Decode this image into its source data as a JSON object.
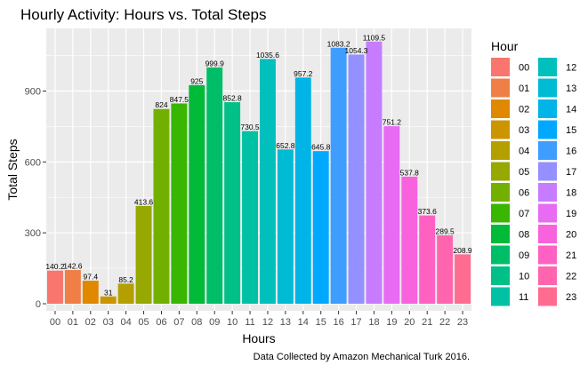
{
  "chart_data": {
    "type": "bar",
    "title": "Hourly Activity: Hours vs. Total Steps",
    "xlabel": "Hours",
    "ylabel": "Total Steps",
    "caption": "Data Collected by Amazon Mechanical Turk 2016.",
    "legend_title": "Hour",
    "legend_position": "right",
    "grid": true,
    "ylim": [
      0,
      1150
    ],
    "yticks": [
      0,
      300,
      600,
      900
    ],
    "categories": [
      "00",
      "01",
      "02",
      "03",
      "04",
      "05",
      "06",
      "07",
      "08",
      "09",
      "10",
      "11",
      "12",
      "13",
      "14",
      "15",
      "16",
      "17",
      "18",
      "19",
      "20",
      "21",
      "22",
      "23"
    ],
    "values": [
      140.2,
      142.6,
      97.4,
      31,
      85.2,
      413.6,
      824,
      847.5,
      925,
      999.9,
      852.8,
      730.5,
      1035.6,
      652.8,
      957.2,
      645.8,
      1083.2,
      1054.3,
      1109.5,
      751.2,
      537.8,
      373.6,
      289.5,
      208.9
    ],
    "value_labels": [
      "140.2",
      "142.6",
      "97.4",
      "31",
      "85.2",
      "413.6",
      "824",
      "847.5",
      "925",
      "999.9",
      "852.8",
      "730.5",
      "1035.6",
      "652.8",
      "957.2",
      "645.8",
      "1083.2",
      "1054.3",
      "1109.5",
      "751.2",
      "537.8",
      "373.6",
      "289.5",
      "208.9"
    ],
    "colors": [
      "#F8766D",
      "#EF7F47",
      "#E08800",
      "#CC9500",
      "#B49F00",
      "#97A800",
      "#72B000",
      "#39B600",
      "#00BA38",
      "#00BE67",
      "#00C087",
      "#00C1A3",
      "#00BFBD",
      "#00BBD4",
      "#00B4E8",
      "#00A9FF",
      "#3F9DFF",
      "#9590FF",
      "#C77CFF",
      "#E76BF3",
      "#F962DD",
      "#FF61C3",
      "#FF65AE",
      "#FF6C90"
    ],
    "panel_background": "#EBEBEB",
    "grid_color": "#FFFFFF"
  }
}
